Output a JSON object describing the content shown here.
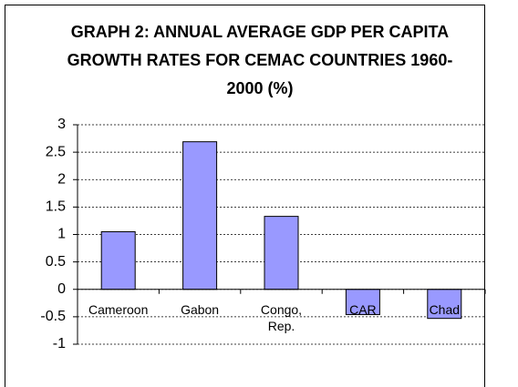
{
  "chart_data": {
    "type": "bar",
    "title": "GRAPH 2:  ANNUAL AVERAGE GDP PER CAPITA GROWTH RATES FOR CEMAC COUNTRIES 1960-2000 (%)",
    "categories": [
      "Cameroon",
      "Gabon",
      "Congo, Rep.",
      "CAR",
      "Chad"
    ],
    "values": [
      1.05,
      2.69,
      1.33,
      -0.46,
      -0.53
    ],
    "color": "#9999ff",
    "ylim": [
      -1,
      3
    ],
    "yticks": [
      -1,
      -0.5,
      0,
      0.5,
      1,
      1.5,
      2,
      2.5,
      3
    ],
    "grid": true
  }
}
